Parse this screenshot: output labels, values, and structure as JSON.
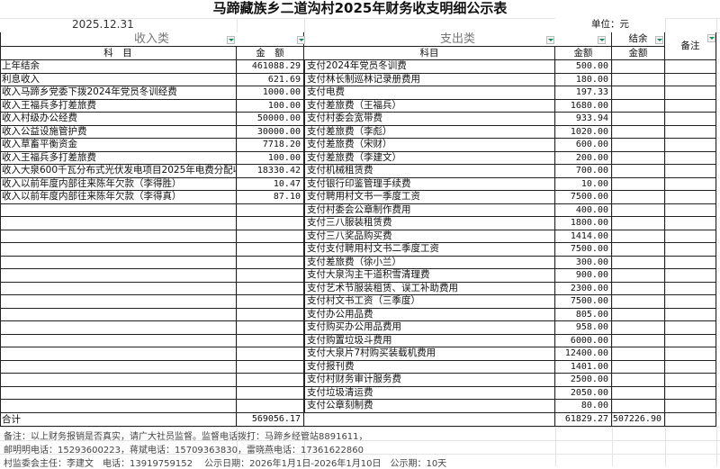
{
  "title": "马蹄藏族乡二道沟村2025年财务收支明细公示表",
  "date": "2025.12.31",
  "unit": "单位：元",
  "headers": {
    "income": "收入类",
    "expense": "支出类",
    "balance": "结余",
    "remarks": "备注",
    "item": "科　目",
    "amount": "金　额",
    "expense_item": "科目",
    "expense_amount": "金额",
    "balance_amount": "金额"
  },
  "income": [
    {
      "item": "上年结余",
      "amount": "461088.29"
    },
    {
      "item": "利息收入",
      "amount": "621.69"
    },
    {
      "item": "收入马蹄乡党委下拨2024年党员冬训经费",
      "amount": "1000.00"
    },
    {
      "item": "收入王福兵多打差旅费",
      "amount": "100.00"
    },
    {
      "item": "收入村级办公经费",
      "amount": "50000.00"
    },
    {
      "item": "收入公益设施管护费",
      "amount": "30000.00"
    },
    {
      "item": "收入草畜平衡资金",
      "amount": "7718.20"
    },
    {
      "item": "收入王福兵多打差旅费",
      "amount": "100.00"
    },
    {
      "item": "收入大泉600千瓦分布式光伏发电项目2025年电费分配收益",
      "amount": "18330.42"
    },
    {
      "item": "收入以前年度内部往来陈年欠款（李得胜）",
      "amount": "10.47"
    },
    {
      "item": "收入以前年度内部往来陈年欠款（李得真）",
      "amount": "87.10"
    }
  ],
  "expense": [
    {
      "item": "支付2024年党员冬训费",
      "amount": "500.00"
    },
    {
      "item": "支付林长制巡林记录册费用",
      "amount": "180.00"
    },
    {
      "item": "支付电费",
      "amount": "197.33"
    },
    {
      "item": "支付差旅费（王福兵）",
      "amount": "1680.00"
    },
    {
      "item": "支付村委会宽带费",
      "amount": "933.94"
    },
    {
      "item": "支付差旅费（李彪）",
      "amount": "1020.00"
    },
    {
      "item": "支付差旅费（宋财）",
      "amount": "600.00"
    },
    {
      "item": "支付差旅费（李建文）",
      "amount": "200.00"
    },
    {
      "item": "支付机械租赁费",
      "amount": "700.00"
    },
    {
      "item": "支付银行印鉴管理手续费",
      "amount": "10.00"
    },
    {
      "item": "支付聘用村文书一季度工资",
      "amount": "7500.00"
    },
    {
      "item": "支付村委会公章制作费用",
      "amount": "400.00"
    },
    {
      "item": "支付三八服装租赁费",
      "amount": "1800.00"
    },
    {
      "item": "支付三八奖品购买费",
      "amount": "1414.00"
    },
    {
      "item": "支付支付聘用村文书二季度工资",
      "amount": "7500.00"
    },
    {
      "item": "支付差旅费（徐小兰）",
      "amount": "300.00"
    },
    {
      "item": "支付大泉沟主干道积雪清理费",
      "amount": "900.00"
    },
    {
      "item": "支付艺术节服装租赁、误工补助费用",
      "amount": "2300.00"
    },
    {
      "item": "支付村文书工资（三季度）",
      "amount": "7500.00"
    },
    {
      "item": "支付办公用品费",
      "amount": "805.00"
    },
    {
      "item": "支付购买办公用品费用",
      "amount": "958.00"
    },
    {
      "item": "支付购置垃圾斗费用",
      "amount": "6000.00"
    },
    {
      "item": "支付大泉片7村购买装载机费用",
      "amount": "12400.00"
    },
    {
      "item": "支付报刊费",
      "amount": "1401.00"
    },
    {
      "item": "支付村财务审计服务费",
      "amount": "2500.00"
    },
    {
      "item": "支付垃圾清运费",
      "amount": "2050.00"
    },
    {
      "item": "支付公章刻制费",
      "amount": "80.00"
    }
  ],
  "total": {
    "label": "合计",
    "income": "569056.17",
    "expense": "61829.27",
    "balance": "507226.90"
  },
  "notes": [
    "备注：以上财务报销是否真实，请广大社员监督。监督电话拨打：马蹄乡经管站8891611，",
    "邮明明电话：15293600223，蒋斌电话：15709363830，雷晓燕电话：17361622860",
    "村监委会主任：李建文　电话：13919759152　 公示日期：2026年1月1日-2026年1月10日　公示期：10天"
  ]
}
